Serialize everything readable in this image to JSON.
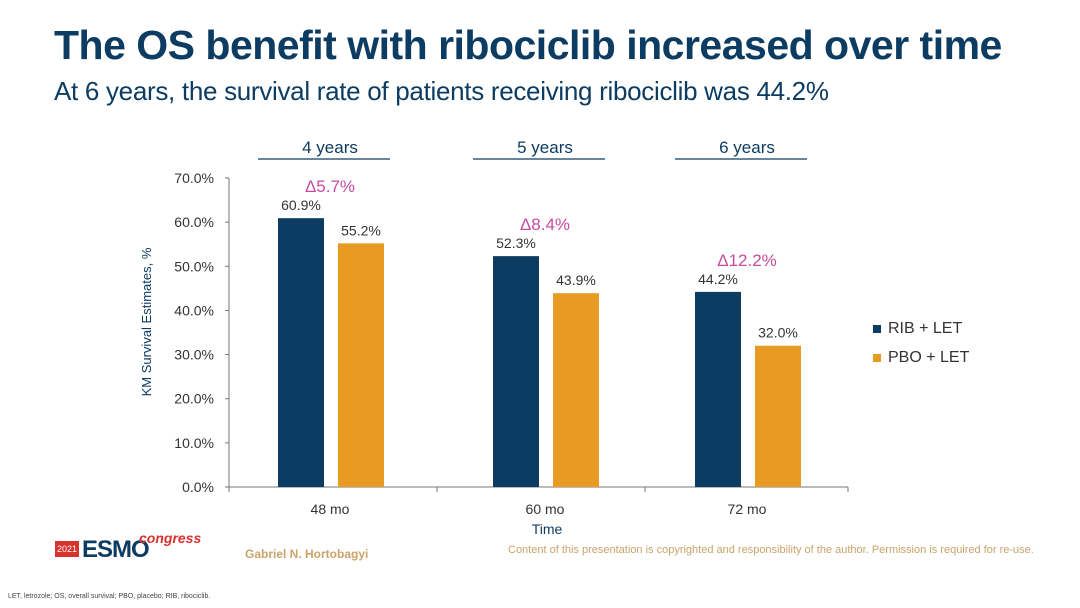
{
  "title": "The OS benefit with ribociclib increased over time",
  "subtitle": "At 6 years, the survival rate of patients receiving ribociclib was 44.2%",
  "chart_data": {
    "type": "bar",
    "categories": [
      "48 mo",
      "60 mo",
      "72 mo"
    ],
    "group_headers": [
      "4 years",
      "5 years",
      "6 years"
    ],
    "series": [
      {
        "name": "RIB + LET",
        "color": "#0d3c62",
        "values": [
          60.9,
          52.3,
          44.2
        ],
        "labels": [
          "60.9%",
          "52.3%",
          "44.2%"
        ]
      },
      {
        "name": "PBO + LET",
        "color": "#e89b22",
        "values": [
          55.2,
          43.9,
          32.0
        ],
        "labels": [
          "55.2%",
          "43.9%",
          "32.0%"
        ]
      }
    ],
    "deltas": [
      "Δ5.7%",
      "Δ8.4%",
      "Δ12.2%"
    ],
    "delta_color": "#c74aa0",
    "xlabel": "Time",
    "ylabel": "KM Survival Estimates, %",
    "ylim": [
      0,
      70
    ],
    "yticks": [
      0,
      10,
      20,
      30,
      40,
      50,
      60,
      70
    ],
    "ytick_labels": [
      "0.0%",
      "10.0%",
      "20.0%",
      "30.0%",
      "40.0%",
      "50.0%",
      "60.0%",
      "70.0%"
    ],
    "legend_position": "right",
    "grid": false
  },
  "logo": {
    "year": "2021",
    "brand": "ESMO",
    "word": "congress"
  },
  "author": "Gabriel N. Hortobagyi",
  "copyright": "Content of this presentation is copyrighted and responsibility of the author. Permission is required for re-use.",
  "footnote": "LET, letrozole; OS, overall survival; PBO, placebo; RIB, ribociclib."
}
